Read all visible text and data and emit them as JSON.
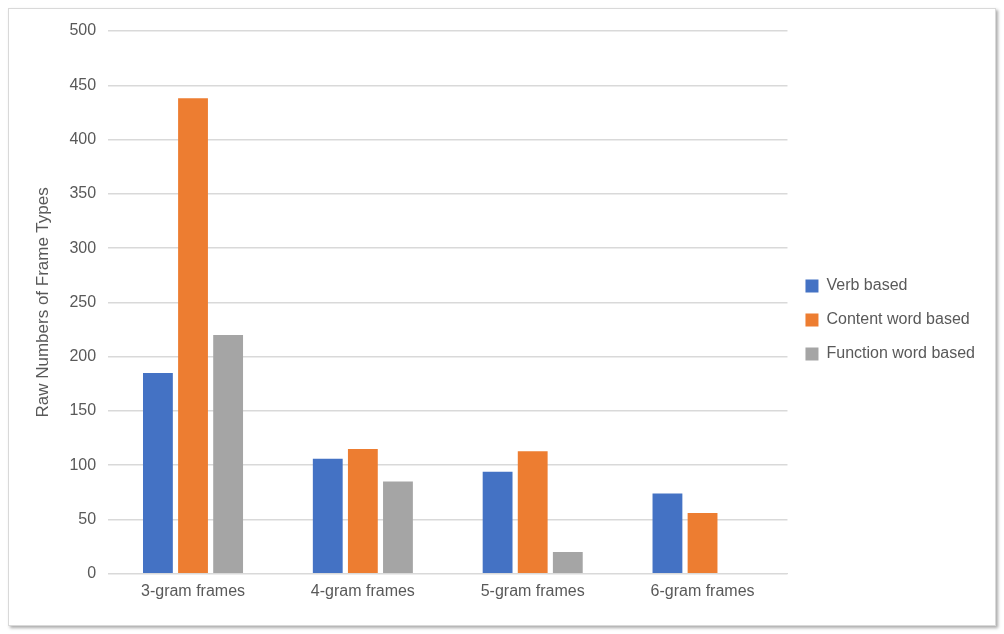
{
  "chart_data": {
    "type": "bar",
    "ylabel": "Raw Numbers of Frame Types",
    "categories": [
      "3-gram frames",
      "4-gram frames",
      "5-gram frames",
      "6-gram frames"
    ],
    "series": [
      {
        "name": "Verb based",
        "color": "#4472c4",
        "values": [
          185,
          106,
          94,
          74
        ]
      },
      {
        "name": "Content word based",
        "color": "#ed7d31",
        "values": [
          438,
          115,
          113,
          56
        ]
      },
      {
        "name": "Function word based",
        "color": "#a5a5a5",
        "values": [
          220,
          85,
          20,
          null
        ]
      }
    ],
    "ylim": [
      0,
      500
    ],
    "yticks": [
      0,
      50,
      100,
      150,
      200,
      250,
      300,
      350,
      400,
      450,
      500
    ],
    "grid": "y",
    "legend": "right"
  }
}
